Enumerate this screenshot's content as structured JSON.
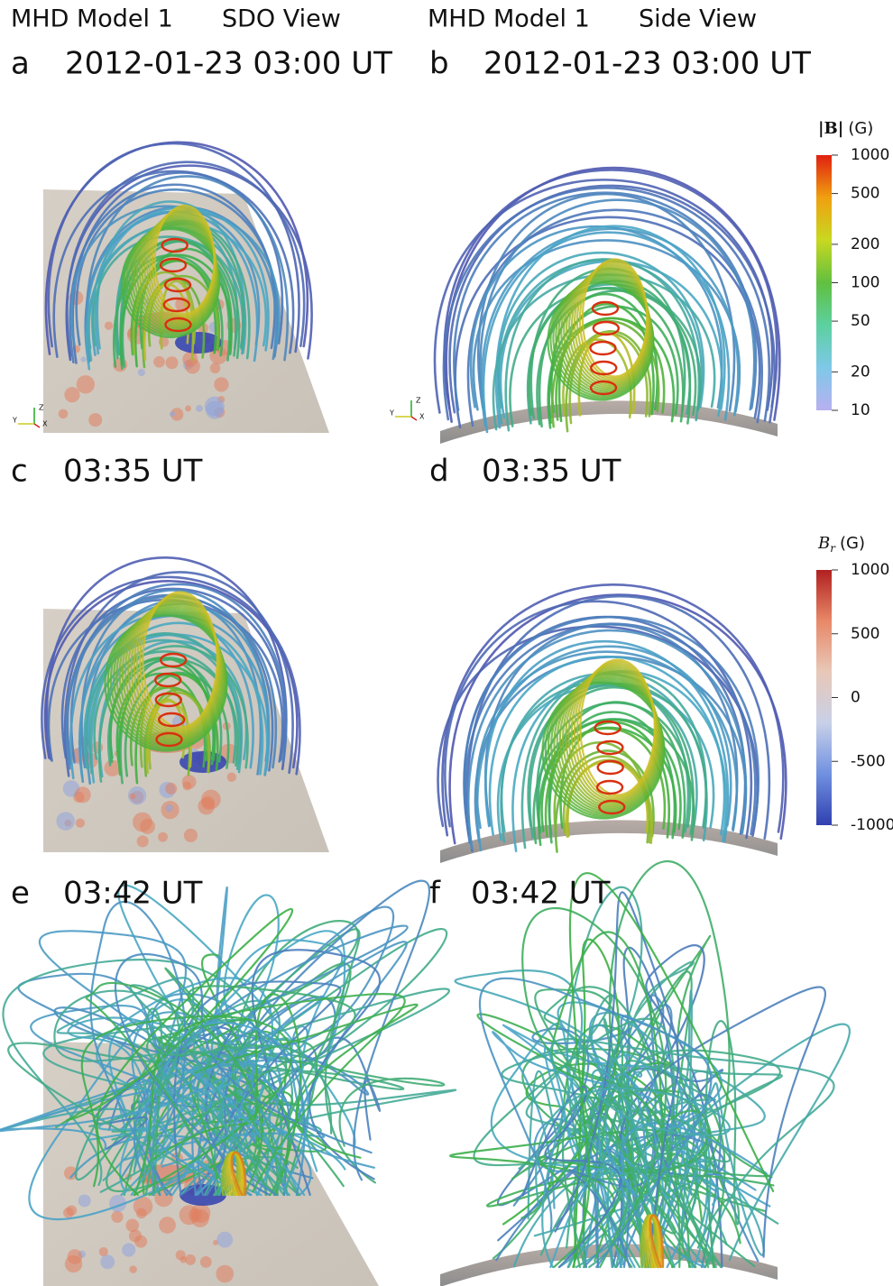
{
  "header": {
    "left": {
      "model": "MHD Model 1",
      "view": "SDO View"
    },
    "right": {
      "model": "MHD Model 1",
      "view": "Side View"
    }
  },
  "panels": [
    {
      "letter": "a",
      "time": "2012-01-23 03:00 UT"
    },
    {
      "letter": "b",
      "time": "2012-01-23 03:00 UT"
    },
    {
      "letter": "c",
      "time": "03:35 UT"
    },
    {
      "letter": "d",
      "time": "03:35 UT"
    },
    {
      "letter": "e",
      "time": "03:42 UT"
    },
    {
      "letter": "f",
      "time": "03:42 UT"
    }
  ],
  "axis_triad": [
    "Z",
    "Y",
    "X"
  ],
  "colorbars": [
    {
      "symbol": "|B|",
      "unit": "(G)",
      "scale": "log",
      "range": [
        10,
        1000
      ],
      "ticks": [
        1000,
        500,
        200,
        100,
        50,
        20,
        10
      ],
      "colors": [
        "#b8b0f0",
        "#7ec8e8",
        "#5cd0a0",
        "#60c040",
        "#c8d820",
        "#f0a010",
        "#e02010"
      ]
    },
    {
      "symbol": "B",
      "subscript": "r",
      "unit": "(G)",
      "scale": "linear",
      "range": [
        -1000,
        1000
      ],
      "ticks": [
        1000,
        500,
        0,
        -500,
        -1000
      ],
      "colors": [
        "#3040b0",
        "#7090e0",
        "#c8d0e8",
        "#e8c8b8",
        "#e88868",
        "#b02020"
      ]
    }
  ]
}
